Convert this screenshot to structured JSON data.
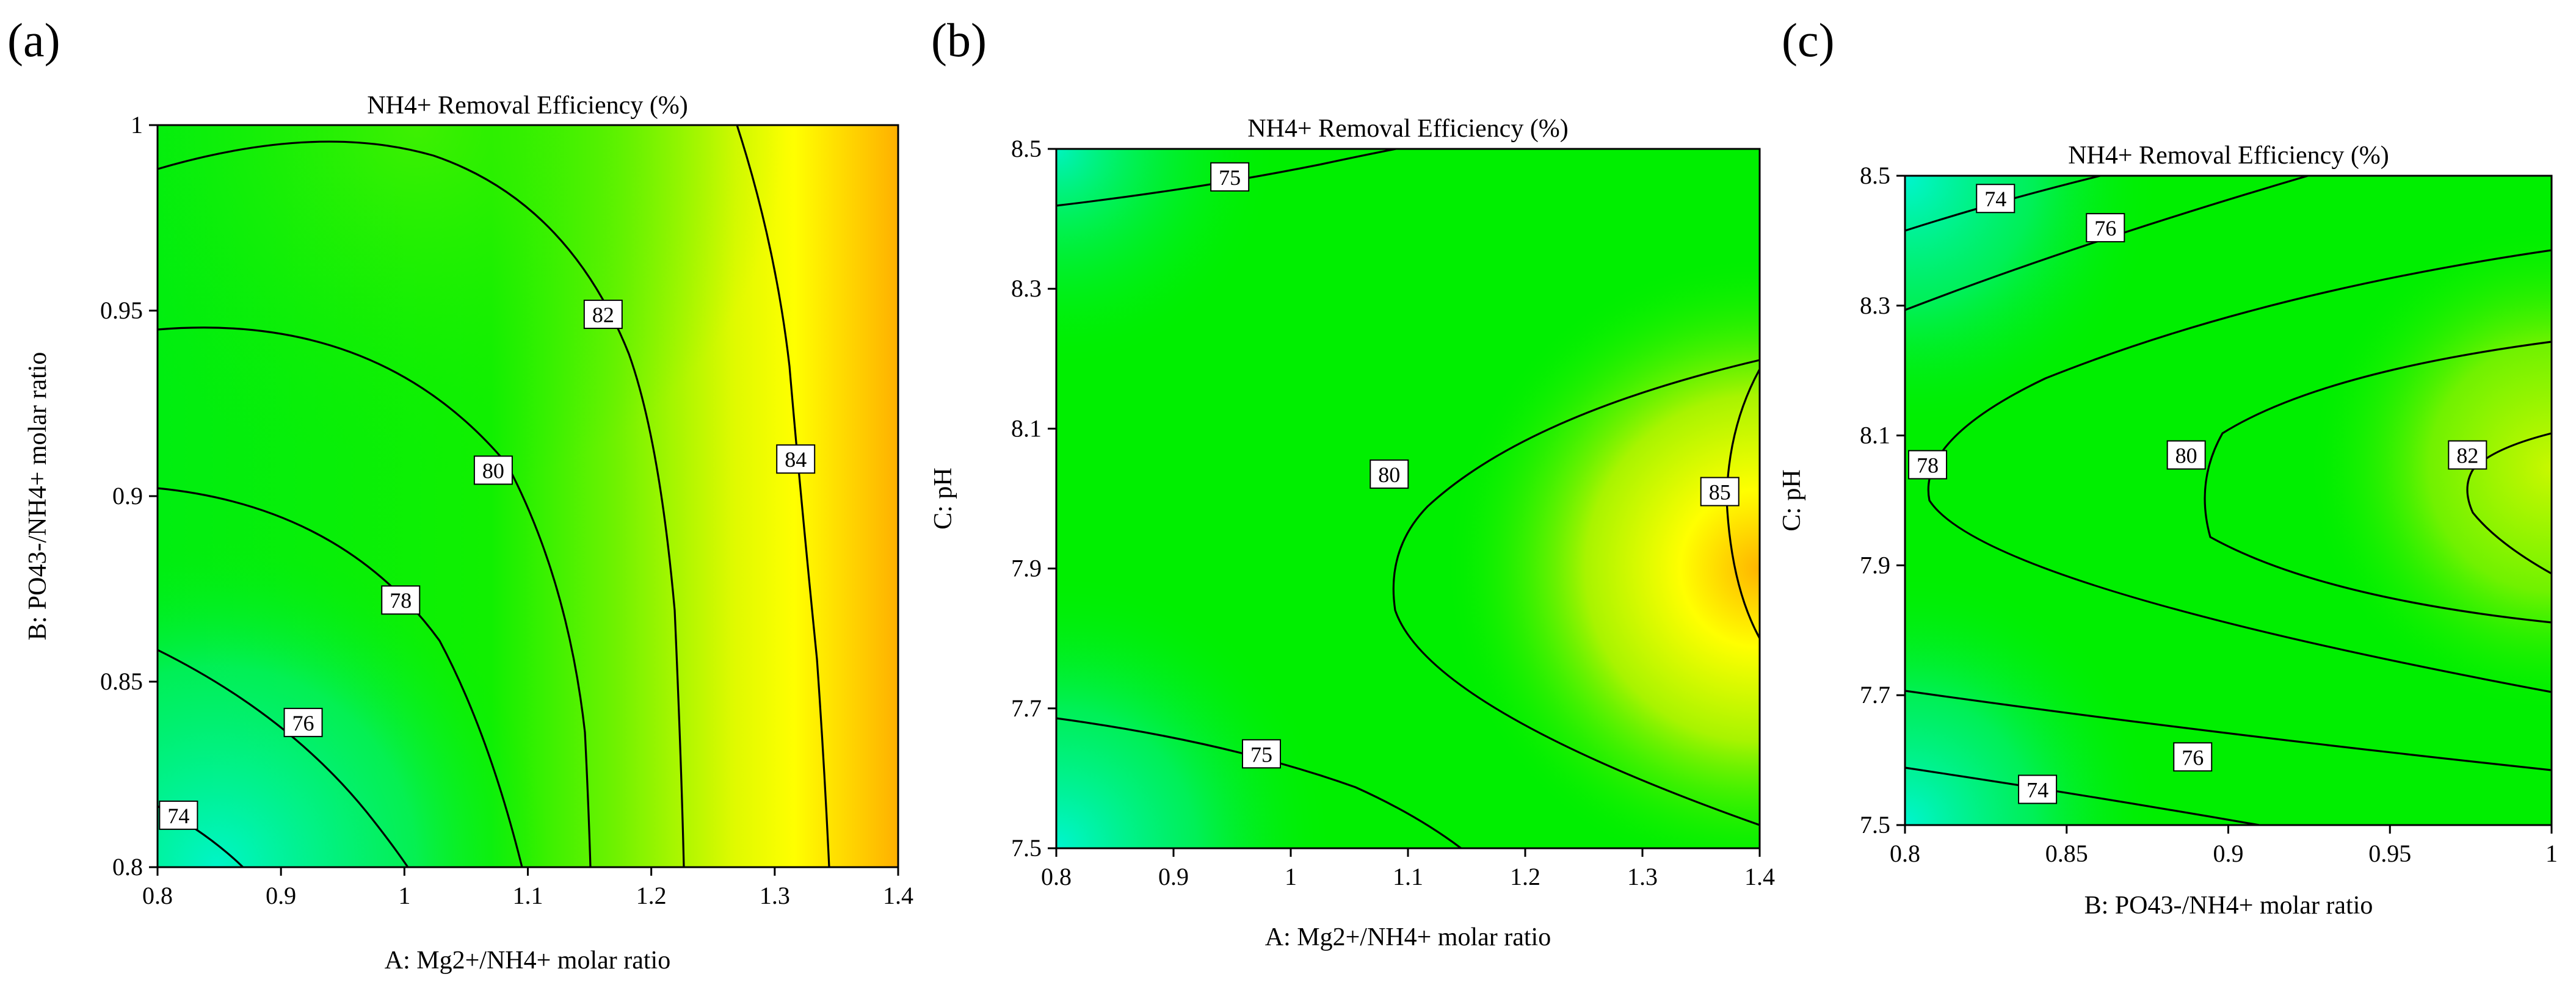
{
  "colors": {
    "low": "#00f2c8",
    "green": "#00f000",
    "yellow": "#ffff00",
    "high": "#ffb400",
    "line": "#000000"
  },
  "chart_data": [
    {
      "type": "contour",
      "panel": "(a)",
      "title": "NH4+ Removal Efficiency (%)",
      "xlabel": "A: Mg2+/NH4+ molar ratio",
      "ylabel": "B: PO43-/NH4+ molar ratio",
      "xlim": [
        0.8,
        1.4
      ],
      "ylim": [
        0.8,
        1.0
      ],
      "xticks": [
        0.8,
        0.9,
        1.0,
        1.1,
        1.2,
        1.3,
        1.4
      ],
      "xtick_labels": [
        "0.8",
        "0.9",
        "1",
        "1.1",
        "1.2",
        "1.3",
        "1.4"
      ],
      "yticks": [
        0.8,
        0.85,
        0.9,
        0.95,
        1.0
      ],
      "ytick_labels": [
        "0.8",
        "0.85",
        "0.9",
        "0.95",
        "1"
      ],
      "contour_levels": [
        74,
        76,
        78,
        80,
        82,
        84
      ],
      "contour_labels": [
        {
          "text": "74",
          "x": 0.817,
          "y": 0.814
        },
        {
          "text": "76",
          "x": 0.918,
          "y": 0.839
        },
        {
          "text": "78",
          "x": 0.997,
          "y": 0.872
        },
        {
          "text": "80",
          "x": 1.072,
          "y": 0.907
        },
        {
          "text": "82",
          "x": 1.161,
          "y": 0.949
        },
        {
          "text": "84",
          "x": 1.317,
          "y": 0.91
        }
      ]
    },
    {
      "type": "contour",
      "panel": "(b)",
      "title": "NH4+ Removal Efficiency (%)",
      "xlabel": "A: Mg2+/NH4+ molar ratio",
      "ylabel": "C: pH",
      "xlim": [
        0.8,
        1.4
      ],
      "ylim": [
        7.5,
        8.5
      ],
      "xticks": [
        0.8,
        0.9,
        1.0,
        1.1,
        1.2,
        1.3,
        1.4
      ],
      "xtick_labels": [
        "0.8",
        "0.9",
        "1",
        "1.1",
        "1.2",
        "1.3",
        "1.4"
      ],
      "yticks": [
        7.5,
        7.7,
        7.9,
        8.1,
        8.3,
        8.5
      ],
      "ytick_labels": [
        "7.5",
        "7.7",
        "7.9",
        "8.1",
        "8.3",
        "8.5"
      ],
      "contour_levels": [
        75,
        80,
        85
      ],
      "contour_labels": [
        {
          "text": "75",
          "x": 0.948,
          "y": 8.46
        },
        {
          "text": "75",
          "x": 0.975,
          "y": 7.635
        },
        {
          "text": "80",
          "x": 1.084,
          "y": 8.035
        },
        {
          "text": "85",
          "x": 1.366,
          "y": 8.01
        }
      ]
    },
    {
      "type": "contour",
      "panel": "(c)",
      "title": "NH4+ Removal Efficiency (%)",
      "xlabel": "B: PO43-/NH4+ molar ratio",
      "ylabel": "C: pH",
      "xlim": [
        0.8,
        1.0
      ],
      "ylim": [
        7.5,
        8.5
      ],
      "xticks": [
        0.8,
        0.85,
        0.9,
        0.95,
        1.0
      ],
      "xtick_labels": [
        "0.8",
        "0.85",
        "0.9",
        "0.95",
        "1"
      ],
      "yticks": [
        7.5,
        7.7,
        7.9,
        8.1,
        8.3,
        8.5
      ],
      "ytick_labels": [
        "7.5",
        "7.7",
        "7.9",
        "8.1",
        "8.3",
        "8.5"
      ],
      "contour_levels": [
        74,
        76,
        78,
        80,
        82
      ],
      "contour_labels": [
        {
          "text": "74",
          "x": 0.828,
          "y": 8.465
        },
        {
          "text": "76",
          "x": 0.862,
          "y": 8.42
        },
        {
          "text": "78",
          "x": 0.807,
          "y": 8.055
        },
        {
          "text": "80",
          "x": 0.887,
          "y": 8.07
        },
        {
          "text": "82",
          "x": 0.974,
          "y": 8.07
        },
        {
          "text": "76",
          "x": 0.889,
          "y": 7.605
        },
        {
          "text": "74",
          "x": 0.841,
          "y": 7.555
        }
      ]
    }
  ]
}
